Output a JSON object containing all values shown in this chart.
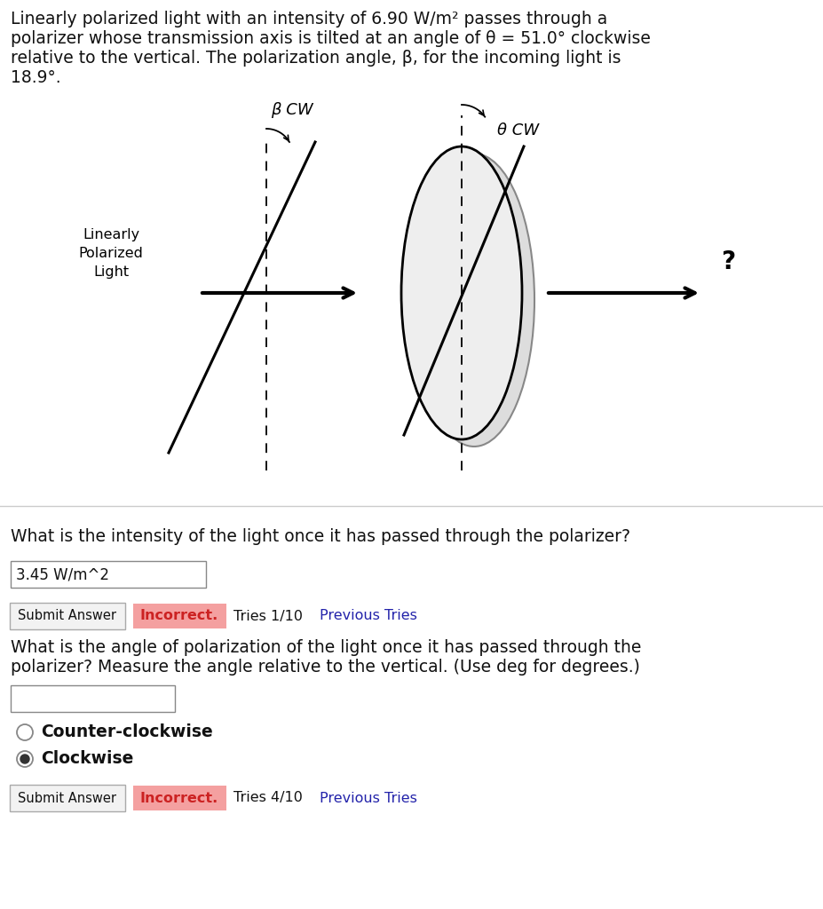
{
  "panel_color": "#ffffff",
  "text_color": "#111111",
  "para_text_line1": "Linearly polarized light with an intensity of 6.90 W/m² passes through a",
  "para_text_line2": "polarizer whose transmission axis is tilted at an angle of θ = 51.0° clockwise",
  "para_text_line3": "relative to the vertical. The polarization angle, β, for the incoming light is",
  "para_text_line4": "18.9°.",
  "beta_cw_label": "β CW",
  "theta_cw_label": "θ CW",
  "lpl_label": "Linearly\nPolarized\nLight",
  "question_mark": "?",
  "question1": "What is the intensity of the light once it has passed through the polarizer?",
  "answer1": "3.45 W/m^2",
  "submit_btn": "Submit Answer",
  "incorrect_text": "Incorrect.",
  "tries1": "Tries 1/10",
  "prev_tries": "Previous Tries",
  "question2_line1": "What is the angle of polarization of the light once it has passed through the",
  "question2_line2": "polarizer? Measure the angle relative to the vertical. (Use deg for degrees.)",
  "radio1": "Counter-clockwise",
  "radio2": "Clockwise",
  "tries2": "Tries 4/10",
  "incorrect_color": "#f4a0a0",
  "incorrect_text_color": "#cc2222",
  "link_color": "#2222aa",
  "button_border": "#aaaaaa",
  "gray_bg": "#f0f0f0",
  "diagram_bg": "#f5f5f5"
}
